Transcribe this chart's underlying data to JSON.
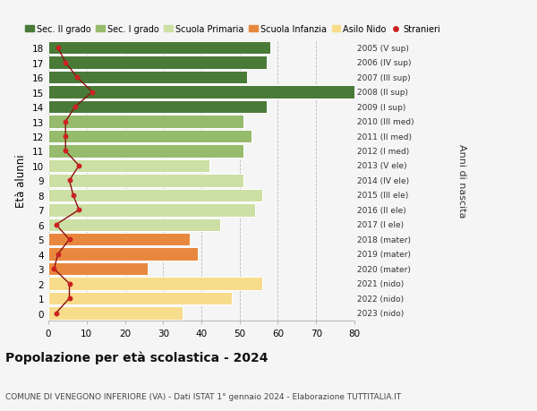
{
  "ages": [
    0,
    1,
    2,
    3,
    4,
    5,
    6,
    7,
    8,
    9,
    10,
    11,
    12,
    13,
    14,
    15,
    16,
    17,
    18
  ],
  "bar_values": [
    35,
    48,
    56,
    26,
    39,
    37,
    45,
    54,
    56,
    51,
    42,
    51,
    53,
    51,
    57,
    80,
    52,
    57,
    58
  ],
  "right_labels": [
    "2023 (nido)",
    "2022 (nido)",
    "2021 (nido)",
    "2020 (mater)",
    "2019 (mater)",
    "2018 (mater)",
    "2017 (I ele)",
    "2016 (II ele)",
    "2015 (III ele)",
    "2014 (IV ele)",
    "2013 (V ele)",
    "2012 (I med)",
    "2011 (II med)",
    "2010 (III med)",
    "2009 (I sup)",
    "2008 (II sup)",
    "2007 (III sup)",
    "2006 (IV sup)",
    "2005 (V sup)"
  ],
  "bar_colors": [
    "#f7dc8c",
    "#f7dc8c",
    "#f7dc8c",
    "#e8883e",
    "#e8883e",
    "#e8883e",
    "#ccdfa4",
    "#ccdfa4",
    "#ccdfa4",
    "#ccdfa4",
    "#ccdfa4",
    "#96bb6c",
    "#96bb6c",
    "#96bb6c",
    "#4a7a38",
    "#4a7a38",
    "#4a7a38",
    "#4a7a38",
    "#4a7a38"
  ],
  "stranieri_x": [
    2.0,
    5.5,
    5.5,
    1.5,
    2.5,
    5.5,
    2.0,
    8.0,
    6.5,
    5.5,
    8.0,
    4.5,
    4.5,
    4.5,
    7.0,
    11.5,
    7.5,
    4.5,
    2.5
  ],
  "legend_labels": [
    "Sec. II grado",
    "Sec. I grado",
    "Scuola Primaria",
    "Scuola Infanzia",
    "Asilo Nido",
    "Stranieri"
  ],
  "legend_colors": [
    "#4a7a38",
    "#96bb6c",
    "#ccdfa4",
    "#e8883e",
    "#f7dc8c",
    "#cc2222"
  ],
  "title": "Popolazione per età scolastica - 2024",
  "subtitle": "COMUNE DI VENEGONO INFERIORE (VA) - Dati ISTAT 1° gennaio 2024 - Elaborazione TUTTITALIA.IT",
  "ylabel": "Età alunni",
  "right_ylabel": "Anni di nascita",
  "xlim": [
    0,
    80
  ],
  "xticks": [
    0,
    10,
    20,
    30,
    40,
    50,
    60,
    70,
    80
  ],
  "bg_color": "#f5f5f5"
}
